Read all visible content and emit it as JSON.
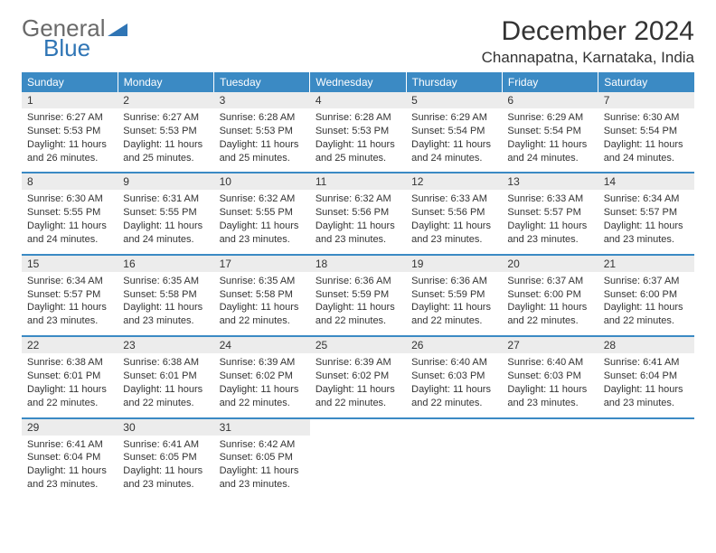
{
  "logo": {
    "word1": "General",
    "word2": "Blue"
  },
  "title": "December 2024",
  "subtitle": "Channapatna, Karnataka, India",
  "colors": {
    "header_bg": "#3b8ac4",
    "header_text": "#ffffff",
    "daynum_bg": "#ececec",
    "row_border": "#3b8ac4",
    "logo_gray": "#6a6a6a",
    "logo_blue": "#2f75b5"
  },
  "day_headers": [
    "Sunday",
    "Monday",
    "Tuesday",
    "Wednesday",
    "Thursday",
    "Friday",
    "Saturday"
  ],
  "sunrise_label": "Sunrise: ",
  "sunset_label": "Sunset: ",
  "daylight_label": "Daylight: ",
  "days": {
    "1": {
      "sunrise": "6:27 AM",
      "sunset": "5:53 PM",
      "daylight": "11 hours and 26 minutes."
    },
    "2": {
      "sunrise": "6:27 AM",
      "sunset": "5:53 PM",
      "daylight": "11 hours and 25 minutes."
    },
    "3": {
      "sunrise": "6:28 AM",
      "sunset": "5:53 PM",
      "daylight": "11 hours and 25 minutes."
    },
    "4": {
      "sunrise": "6:28 AM",
      "sunset": "5:53 PM",
      "daylight": "11 hours and 25 minutes."
    },
    "5": {
      "sunrise": "6:29 AM",
      "sunset": "5:54 PM",
      "daylight": "11 hours and 24 minutes."
    },
    "6": {
      "sunrise": "6:29 AM",
      "sunset": "5:54 PM",
      "daylight": "11 hours and 24 minutes."
    },
    "7": {
      "sunrise": "6:30 AM",
      "sunset": "5:54 PM",
      "daylight": "11 hours and 24 minutes."
    },
    "8": {
      "sunrise": "6:30 AM",
      "sunset": "5:55 PM",
      "daylight": "11 hours and 24 minutes."
    },
    "9": {
      "sunrise": "6:31 AM",
      "sunset": "5:55 PM",
      "daylight": "11 hours and 24 minutes."
    },
    "10": {
      "sunrise": "6:32 AM",
      "sunset": "5:55 PM",
      "daylight": "11 hours and 23 minutes."
    },
    "11": {
      "sunrise": "6:32 AM",
      "sunset": "5:56 PM",
      "daylight": "11 hours and 23 minutes."
    },
    "12": {
      "sunrise": "6:33 AM",
      "sunset": "5:56 PM",
      "daylight": "11 hours and 23 minutes."
    },
    "13": {
      "sunrise": "6:33 AM",
      "sunset": "5:57 PM",
      "daylight": "11 hours and 23 minutes."
    },
    "14": {
      "sunrise": "6:34 AM",
      "sunset": "5:57 PM",
      "daylight": "11 hours and 23 minutes."
    },
    "15": {
      "sunrise": "6:34 AM",
      "sunset": "5:57 PM",
      "daylight": "11 hours and 23 minutes."
    },
    "16": {
      "sunrise": "6:35 AM",
      "sunset": "5:58 PM",
      "daylight": "11 hours and 23 minutes."
    },
    "17": {
      "sunrise": "6:35 AM",
      "sunset": "5:58 PM",
      "daylight": "11 hours and 22 minutes."
    },
    "18": {
      "sunrise": "6:36 AM",
      "sunset": "5:59 PM",
      "daylight": "11 hours and 22 minutes."
    },
    "19": {
      "sunrise": "6:36 AM",
      "sunset": "5:59 PM",
      "daylight": "11 hours and 22 minutes."
    },
    "20": {
      "sunrise": "6:37 AM",
      "sunset": "6:00 PM",
      "daylight": "11 hours and 22 minutes."
    },
    "21": {
      "sunrise": "6:37 AM",
      "sunset": "6:00 PM",
      "daylight": "11 hours and 22 minutes."
    },
    "22": {
      "sunrise": "6:38 AM",
      "sunset": "6:01 PM",
      "daylight": "11 hours and 22 minutes."
    },
    "23": {
      "sunrise": "6:38 AM",
      "sunset": "6:01 PM",
      "daylight": "11 hours and 22 minutes."
    },
    "24": {
      "sunrise": "6:39 AM",
      "sunset": "6:02 PM",
      "daylight": "11 hours and 22 minutes."
    },
    "25": {
      "sunrise": "6:39 AM",
      "sunset": "6:02 PM",
      "daylight": "11 hours and 22 minutes."
    },
    "26": {
      "sunrise": "6:40 AM",
      "sunset": "6:03 PM",
      "daylight": "11 hours and 22 minutes."
    },
    "27": {
      "sunrise": "6:40 AM",
      "sunset": "6:03 PM",
      "daylight": "11 hours and 23 minutes."
    },
    "28": {
      "sunrise": "6:41 AM",
      "sunset": "6:04 PM",
      "daylight": "11 hours and 23 minutes."
    },
    "29": {
      "sunrise": "6:41 AM",
      "sunset": "6:04 PM",
      "daylight": "11 hours and 23 minutes."
    },
    "30": {
      "sunrise": "6:41 AM",
      "sunset": "6:05 PM",
      "daylight": "11 hours and 23 minutes."
    },
    "31": {
      "sunrise": "6:42 AM",
      "sunset": "6:05 PM",
      "daylight": "11 hours and 23 minutes."
    }
  },
  "first_day_column": 0,
  "num_days": 31
}
